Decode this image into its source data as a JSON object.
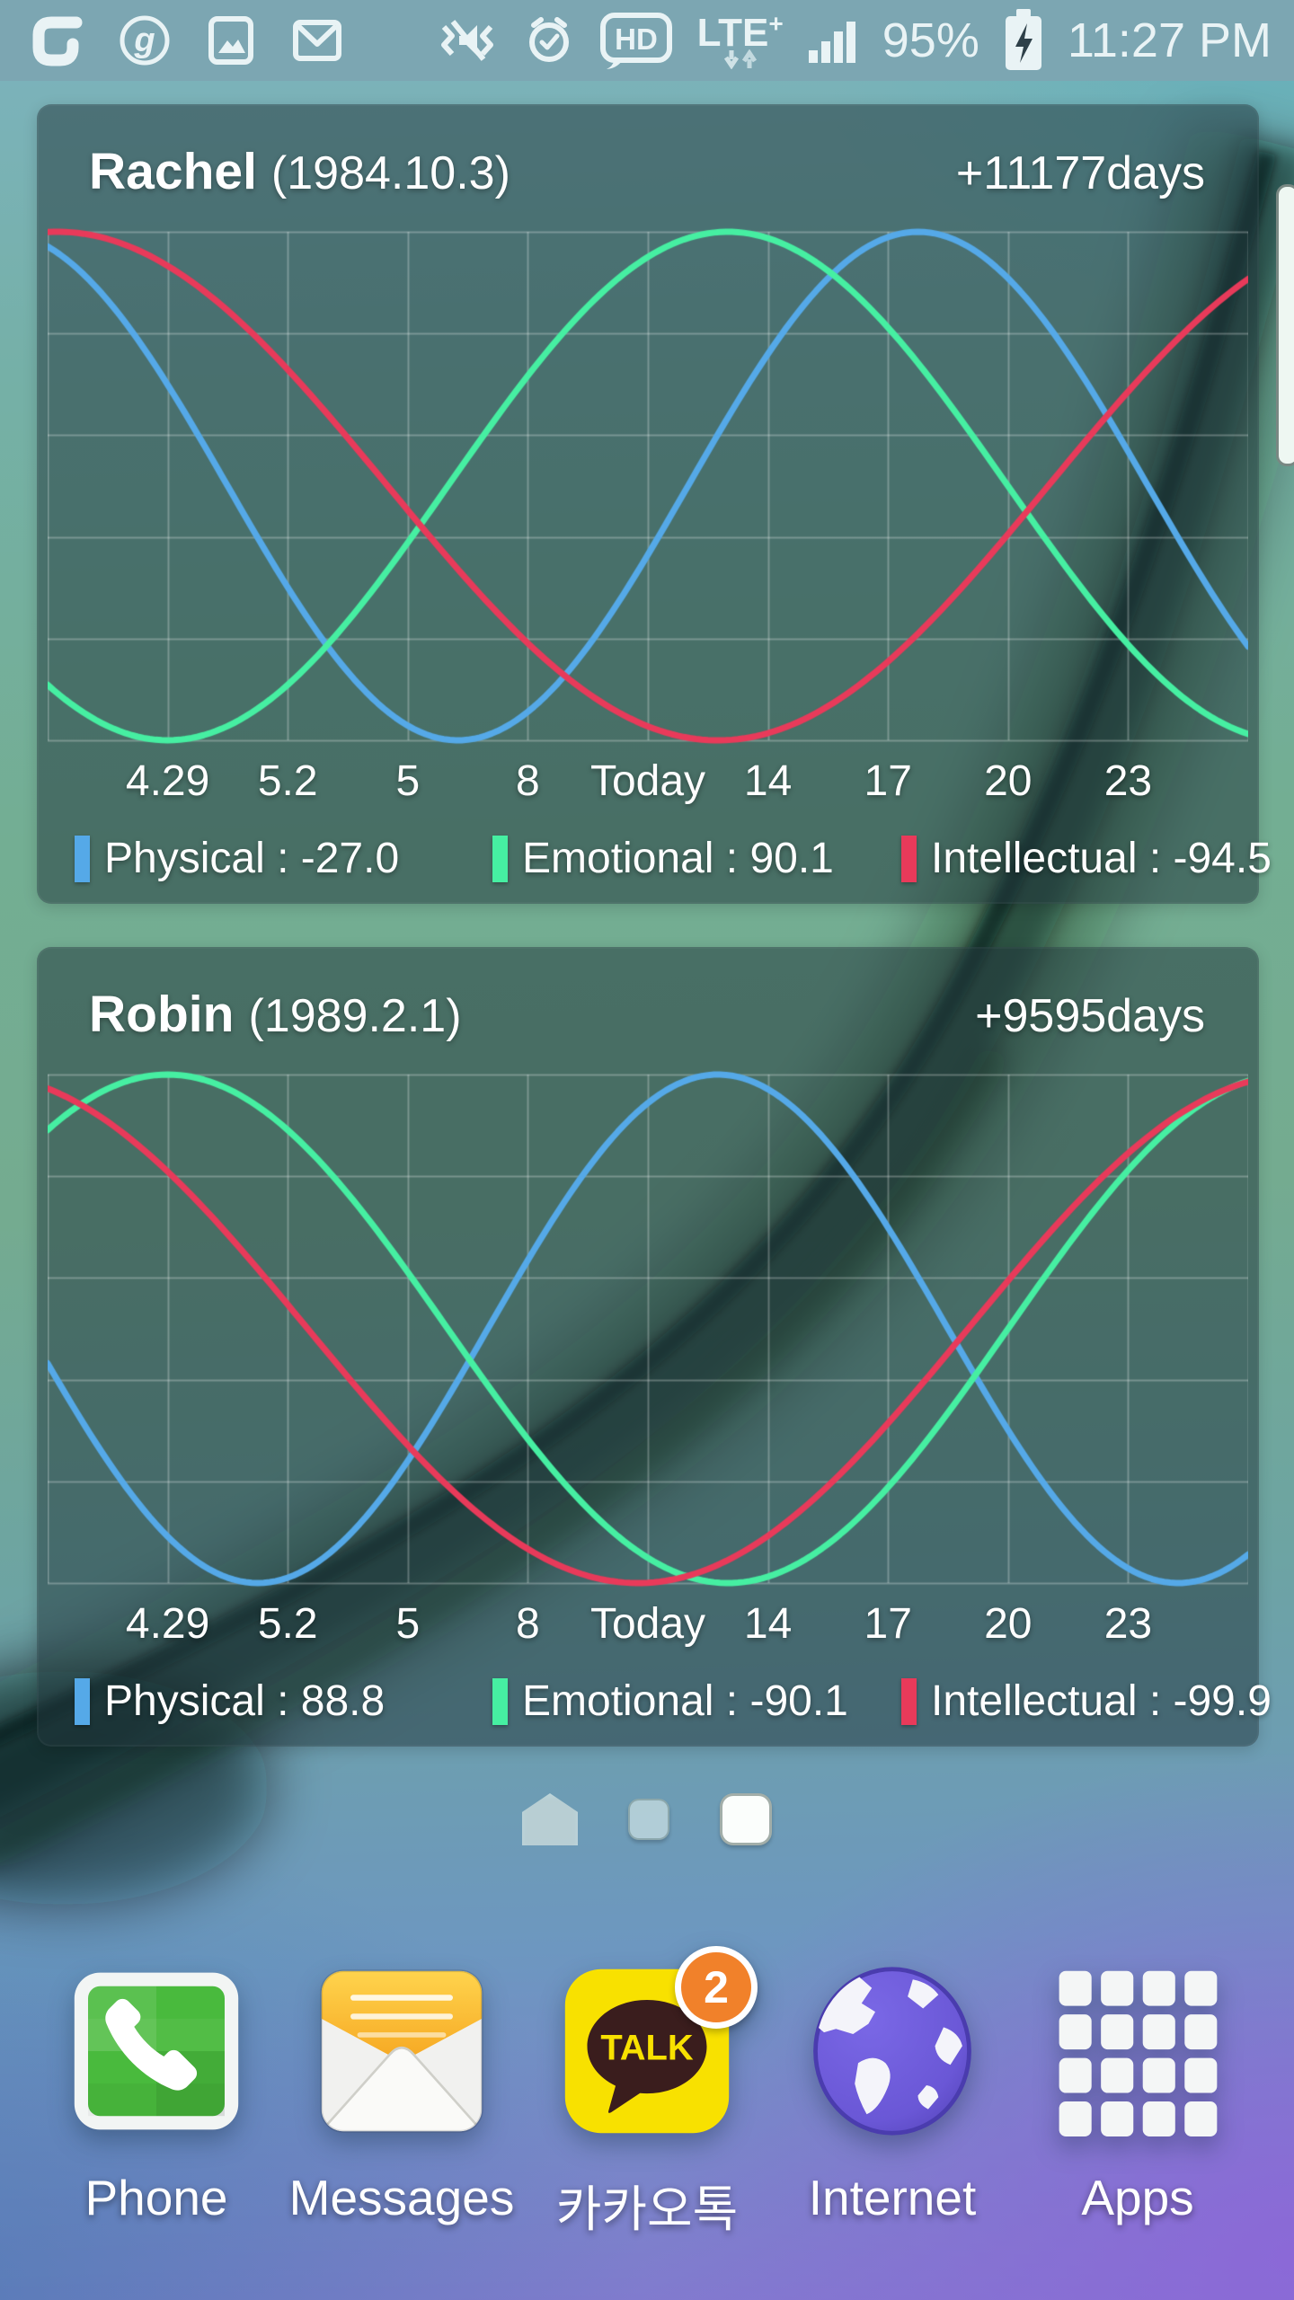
{
  "status_bar": {
    "time": "11:27 PM",
    "battery_percent": "95%",
    "network": "LTE",
    "network_plus": "+",
    "hd_label": "HD",
    "left_icons": [
      "galaxy-app-icon",
      "google-g-icon",
      "gallery-screenshot-icon",
      "gmail-icon"
    ],
    "right_icons": [
      "vibrate-mute-icon",
      "alarm-icon",
      "hd-voice-icon",
      "lte-plus-icon",
      "signal-strength-icon",
      "battery-charging-icon"
    ],
    "bg_color": "#7CA6B2"
  },
  "chart_data": [
    {
      "type": "line",
      "person": "Rachel",
      "birth": "(1984.10.3)",
      "days": "+11177days",
      "day_number": 11177,
      "day_range": [
        -15,
        15
      ],
      "ylim": [
        -100,
        100
      ],
      "grid": true,
      "x_labels": [
        "4.29",
        "5.2",
        "5",
        "8",
        "Today",
        "14",
        "17",
        "20",
        "23"
      ],
      "series": [
        {
          "name": "Physical",
          "period_days": 23,
          "today_value": -27.0,
          "color": "#55A9E8",
          "legend": "Physical : -27.0"
        },
        {
          "name": "Emotional",
          "period_days": 28,
          "today_value": 90.1,
          "color": "#46EFA2",
          "legend": "Emotional : 90.1"
        },
        {
          "name": "Intellectual",
          "period_days": 33,
          "today_value": -94.5,
          "color": "#E83A5A",
          "legend": "Intellectual : -94.5"
        }
      ]
    },
    {
      "type": "line",
      "person": "Robin",
      "birth": "(1989.2.1)",
      "days": "+9595days",
      "day_number": 9595,
      "day_range": [
        -15,
        15
      ],
      "ylim": [
        -100,
        100
      ],
      "grid": true,
      "x_labels": [
        "4.29",
        "5.2",
        "5",
        "8",
        "Today",
        "14",
        "17",
        "20",
        "23"
      ],
      "series": [
        {
          "name": "Physical",
          "period_days": 23,
          "today_value": 88.8,
          "color": "#55A9E8",
          "legend": "Physical : 88.8"
        },
        {
          "name": "Emotional",
          "period_days": 28,
          "today_value": -90.1,
          "color": "#46EFA2",
          "legend": "Emotional : -90.1"
        },
        {
          "name": "Intellectual",
          "period_days": 33,
          "today_value": -99.9,
          "color": "#E83A5A",
          "legend": "Intellectual : -99.9"
        }
      ]
    }
  ],
  "pager": {
    "items": [
      "home-screen",
      "page",
      "current-page"
    ],
    "current_index": 2
  },
  "dock": [
    {
      "label": "Phone",
      "icon": "phone-icon"
    },
    {
      "label": "Messages",
      "icon": "messages-icon"
    },
    {
      "label": "카카오톡",
      "icon": "kakaotalk-icon",
      "badge": "2"
    },
    {
      "label": "Internet",
      "icon": "internet-globe-icon"
    },
    {
      "label": "Apps",
      "icon": "apps-grid-icon"
    }
  ],
  "colors": {
    "physical": "#55A9E8",
    "emotional": "#46EFA2",
    "intellectual": "#E83A5A",
    "kakao_yellow": "#F8E100",
    "badge_orange": "#F1812A",
    "status_bar_bg": "#7CA6B2"
  }
}
